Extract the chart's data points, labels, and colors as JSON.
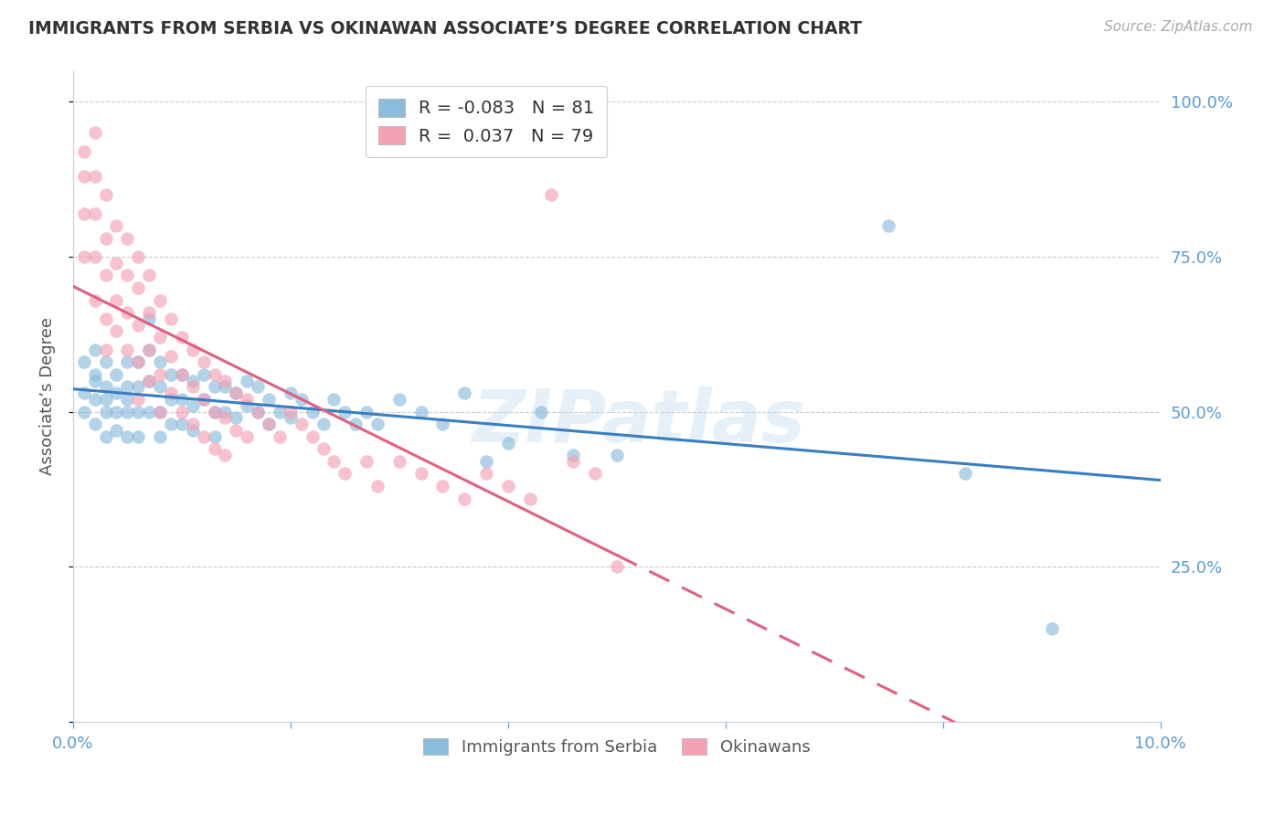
{
  "title": "IMMIGRANTS FROM SERBIA VS OKINAWAN ASSOCIATE’S DEGREE CORRELATION CHART",
  "source_text": "Source: ZipAtlas.com",
  "ylabel": "Associate’s Degree",
  "xlim": [
    0.0,
    0.1
  ],
  "ylim": [
    0.0,
    1.05
  ],
  "yticks": [
    0.0,
    0.25,
    0.5,
    0.75,
    1.0
  ],
  "yticklabels": [
    "",
    "25.0%",
    "50.0%",
    "75.0%",
    "100.0%"
  ],
  "legend_blue_r": "-0.083",
  "legend_blue_n": "81",
  "legend_pink_r": "0.037",
  "legend_pink_n": "79",
  "blue_color": "#8bbcdc",
  "pink_color": "#f4a0b5",
  "blue_line_color": "#3a7ec2",
  "pink_line_color": "#e06080",
  "axis_color": "#5b9bd5",
  "watermark": "ZIPatlas",
  "blue_scatter_x": [
    0.001,
    0.001,
    0.001,
    0.002,
    0.002,
    0.002,
    0.002,
    0.002,
    0.003,
    0.003,
    0.003,
    0.003,
    0.003,
    0.004,
    0.004,
    0.004,
    0.004,
    0.005,
    0.005,
    0.005,
    0.005,
    0.005,
    0.006,
    0.006,
    0.006,
    0.006,
    0.007,
    0.007,
    0.007,
    0.007,
    0.008,
    0.008,
    0.008,
    0.008,
    0.009,
    0.009,
    0.009,
    0.01,
    0.01,
    0.01,
    0.011,
    0.011,
    0.011,
    0.012,
    0.012,
    0.013,
    0.013,
    0.013,
    0.014,
    0.014,
    0.015,
    0.015,
    0.016,
    0.016,
    0.017,
    0.017,
    0.018,
    0.018,
    0.019,
    0.02,
    0.02,
    0.021,
    0.022,
    0.023,
    0.024,
    0.025,
    0.026,
    0.027,
    0.028,
    0.03,
    0.032,
    0.034,
    0.036,
    0.038,
    0.04,
    0.043,
    0.046,
    0.05,
    0.075,
    0.082,
    0.09
  ],
  "blue_scatter_y": [
    0.58,
    0.53,
    0.5,
    0.6,
    0.56,
    0.52,
    0.48,
    0.55,
    0.58,
    0.54,
    0.5,
    0.46,
    0.52,
    0.56,
    0.5,
    0.47,
    0.53,
    0.58,
    0.54,
    0.5,
    0.46,
    0.52,
    0.58,
    0.54,
    0.5,
    0.46,
    0.65,
    0.6,
    0.55,
    0.5,
    0.58,
    0.54,
    0.5,
    0.46,
    0.56,
    0.52,
    0.48,
    0.56,
    0.52,
    0.48,
    0.55,
    0.51,
    0.47,
    0.56,
    0.52,
    0.54,
    0.5,
    0.46,
    0.54,
    0.5,
    0.53,
    0.49,
    0.55,
    0.51,
    0.54,
    0.5,
    0.52,
    0.48,
    0.5,
    0.53,
    0.49,
    0.52,
    0.5,
    0.48,
    0.52,
    0.5,
    0.48,
    0.5,
    0.48,
    0.52,
    0.5,
    0.48,
    0.53,
    0.42,
    0.45,
    0.5,
    0.43,
    0.43,
    0.8,
    0.4,
    0.15
  ],
  "pink_scatter_x": [
    0.001,
    0.001,
    0.001,
    0.001,
    0.002,
    0.002,
    0.002,
    0.002,
    0.002,
    0.003,
    0.003,
    0.003,
    0.003,
    0.003,
    0.004,
    0.004,
    0.004,
    0.004,
    0.005,
    0.005,
    0.005,
    0.005,
    0.006,
    0.006,
    0.006,
    0.006,
    0.006,
    0.007,
    0.007,
    0.007,
    0.007,
    0.008,
    0.008,
    0.008,
    0.008,
    0.009,
    0.009,
    0.009,
    0.01,
    0.01,
    0.01,
    0.011,
    0.011,
    0.011,
    0.012,
    0.012,
    0.012,
    0.013,
    0.013,
    0.013,
    0.014,
    0.014,
    0.014,
    0.015,
    0.015,
    0.016,
    0.016,
    0.017,
    0.018,
    0.019,
    0.02,
    0.021,
    0.022,
    0.023,
    0.024,
    0.025,
    0.027,
    0.028,
    0.03,
    0.032,
    0.034,
    0.036,
    0.038,
    0.04,
    0.042,
    0.044,
    0.046,
    0.048,
    0.05
  ],
  "pink_scatter_y": [
    0.92,
    0.88,
    0.82,
    0.75,
    0.95,
    0.88,
    0.82,
    0.75,
    0.68,
    0.85,
    0.78,
    0.72,
    0.65,
    0.6,
    0.8,
    0.74,
    0.68,
    0.63,
    0.78,
    0.72,
    0.66,
    0.6,
    0.75,
    0.7,
    0.64,
    0.58,
    0.52,
    0.72,
    0.66,
    0.6,
    0.55,
    0.68,
    0.62,
    0.56,
    0.5,
    0.65,
    0.59,
    0.53,
    0.62,
    0.56,
    0.5,
    0.6,
    0.54,
    0.48,
    0.58,
    0.52,
    0.46,
    0.56,
    0.5,
    0.44,
    0.55,
    0.49,
    0.43,
    0.53,
    0.47,
    0.52,
    0.46,
    0.5,
    0.48,
    0.46,
    0.5,
    0.48,
    0.46,
    0.44,
    0.42,
    0.4,
    0.42,
    0.38,
    0.42,
    0.4,
    0.38,
    0.36,
    0.4,
    0.38,
    0.36,
    0.85,
    0.42,
    0.4,
    0.25
  ]
}
